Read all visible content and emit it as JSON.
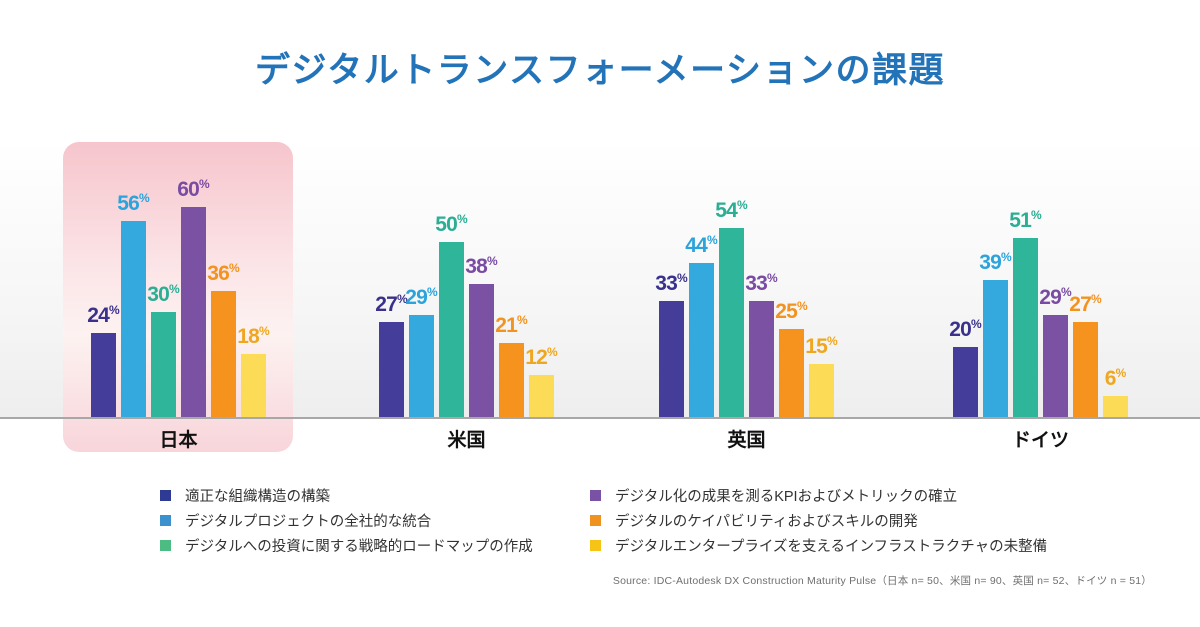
{
  "title": "デジタルトランスフォーメーションの課題",
  "source": "Source: IDC-Autodesk DX Construction Maturity Pulse（日本 n= 50、米国 n= 90、英国 n= 52、ドイツ n = 51）",
  "theme": {
    "title_color": "#2273B8",
    "axis_color": "#a7a7a7",
    "category_label_color": "#111111",
    "highlight_gradient": [
      "#f6c5cc",
      "#fdf2f1",
      "#f8d5da"
    ]
  },
  "chart_data": {
    "type": "bar",
    "title": "デジタルトランスフォーメーションの課題",
    "unit": "%",
    "categories": [
      "日本",
      "米国",
      "英国",
      "ドイツ"
    ],
    "category_ids": [
      "japan",
      "usa",
      "uk",
      "germany"
    ],
    "highlighted_category": "日本",
    "ylim": [
      0,
      65
    ],
    "grid": false,
    "legend_position": "bottom",
    "series": [
      {
        "name": "適正な組織構造の構築",
        "bar_color": "#443d99",
        "label_color": "#39318b",
        "legend_color": "#2e3a94",
        "values": [
          24,
          27,
          33,
          20
        ]
      },
      {
        "name": "デジタルプロジェクトの全社的な統合",
        "bar_color": "#34a9de",
        "label_color": "#2ba3db",
        "legend_color": "#3b90ce",
        "values": [
          56,
          29,
          44,
          39
        ]
      },
      {
        "name": "デジタルへの投資に関する戦略的ロードマップの作成",
        "bar_color": "#2fb59a",
        "label_color": "#2aae94",
        "legend_color": "#4dbc82",
        "values": [
          30,
          50,
          54,
          51
        ]
      },
      {
        "name": "デジタル化の成果を測るKPIおよびメトリックの確立",
        "bar_color": "#7a51a3",
        "label_color": "#7a4ba3",
        "legend_color": "#7a52a5",
        "values": [
          60,
          38,
          33,
          29
        ]
      },
      {
        "name": "デジタルのケイパビリティおよびスキルの開発",
        "bar_color": "#f6921e",
        "label_color": "#f3931f",
        "legend_color": "#f0931e",
        "values": [
          36,
          21,
          25,
          27
        ]
      },
      {
        "name": "デジタルエンタープライズを支えるインフラストラクチャの未整備",
        "bar_color": "#fcdb56",
        "label_color": "#efa71f",
        "legend_color": "#f5c417",
        "values": [
          18,
          12,
          15,
          6
        ]
      }
    ]
  }
}
